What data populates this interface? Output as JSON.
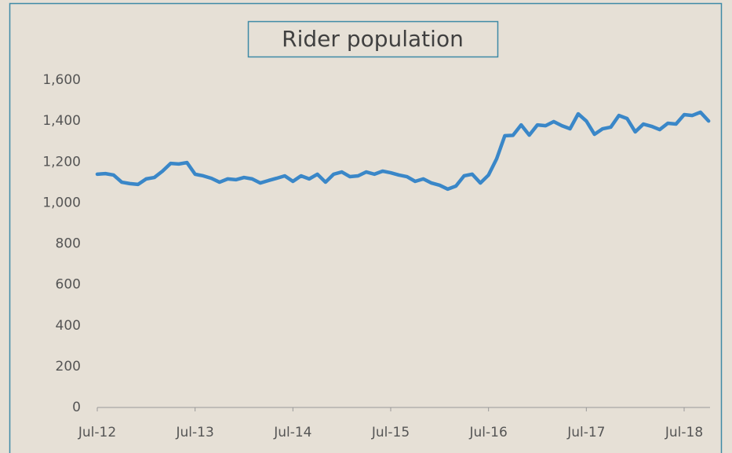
{
  "chart_data": {
    "type": "line",
    "title": "Rider population",
    "categories": [
      "Jul-12",
      null,
      null,
      null,
      null,
      null,
      null,
      null,
      null,
      null,
      null,
      null,
      "Jul-13",
      null,
      null,
      null,
      null,
      null,
      null,
      null,
      null,
      null,
      null,
      null,
      "Jul-14",
      null,
      null,
      null,
      null,
      null,
      null,
      null,
      null,
      null,
      null,
      null,
      "Jul-15",
      null,
      null,
      null,
      null,
      null,
      null,
      null,
      null,
      null,
      null,
      null,
      "Jul-16",
      null,
      null,
      null,
      null,
      null,
      null,
      null,
      null,
      null,
      null,
      null,
      "Jul-17",
      null,
      null,
      null,
      null,
      null,
      null,
      null,
      null,
      null,
      null,
      null,
      "Jul-18",
      null,
      null,
      null
    ],
    "values": [
      1140,
      1143,
      1136,
      1101,
      1094,
      1090,
      1117,
      1124,
      1155,
      1193,
      1190,
      1197,
      1140,
      1132,
      1120,
      1101,
      1117,
      1113,
      1124,
      1117,
      1097,
      1109,
      1120,
      1132,
      1105,
      1132,
      1117,
      1140,
      1101,
      1140,
      1151,
      1128,
      1132,
      1151,
      1140,
      1155,
      1147,
      1136,
      1128,
      1105,
      1117,
      1097,
      1086,
      1067,
      1082,
      1132,
      1140,
      1097,
      1136,
      1216,
      1328,
      1330,
      1381,
      1331,
      1381,
      1377,
      1397,
      1377,
      1362,
      1435,
      1400,
      1335,
      1362,
      1370,
      1427,
      1412,
      1347,
      1385,
      1374,
      1358,
      1389,
      1385,
      1431,
      1427,
      1443,
      1400
    ],
    "color": "#3a87c8",
    "ylim": [
      0,
      1600
    ],
    "yticks": [
      0,
      200,
      400,
      600,
      800,
      {
        "value": 1000,
        "label": "1,000"
      },
      {
        "value": 1200,
        "label": "1,200"
      },
      {
        "value": 1400,
        "label": "1,400"
      },
      {
        "value": 1600,
        "label": "1,600"
      }
    ],
    "grid": false
  }
}
